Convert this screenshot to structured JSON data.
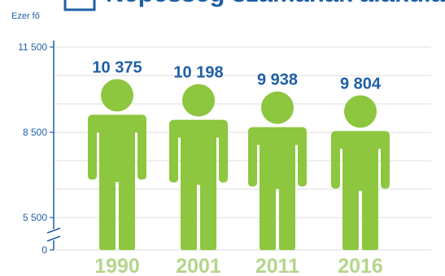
{
  "title": "Népesség számának alakulása",
  "chart_data": {
    "type": "bar",
    "unit_label": "Ezer fő",
    "categories": [
      "1990",
      "2001",
      "2011",
      "2016"
    ],
    "values": [
      10375,
      10198,
      9938,
      9804
    ],
    "value_labels": [
      "10 375",
      "10 198",
      "9 938",
      "9 804"
    ],
    "ylim": [
      0,
      11500
    ],
    "y_ticks": [
      {
        "value": 11500,
        "label": "11 500"
      },
      {
        "value": 8500,
        "label": "8 500"
      },
      {
        "value": 5500,
        "label": "5 500"
      },
      {
        "value": 0,
        "label": "0"
      }
    ],
    "axis_break": true,
    "grid": true,
    "mark_shape": "person-icon",
    "colors": {
      "marks": "#8dc63f",
      "text": "#1f5fa6",
      "grid": "#dcdcdc",
      "year_labels": "#b4d58a"
    }
  }
}
